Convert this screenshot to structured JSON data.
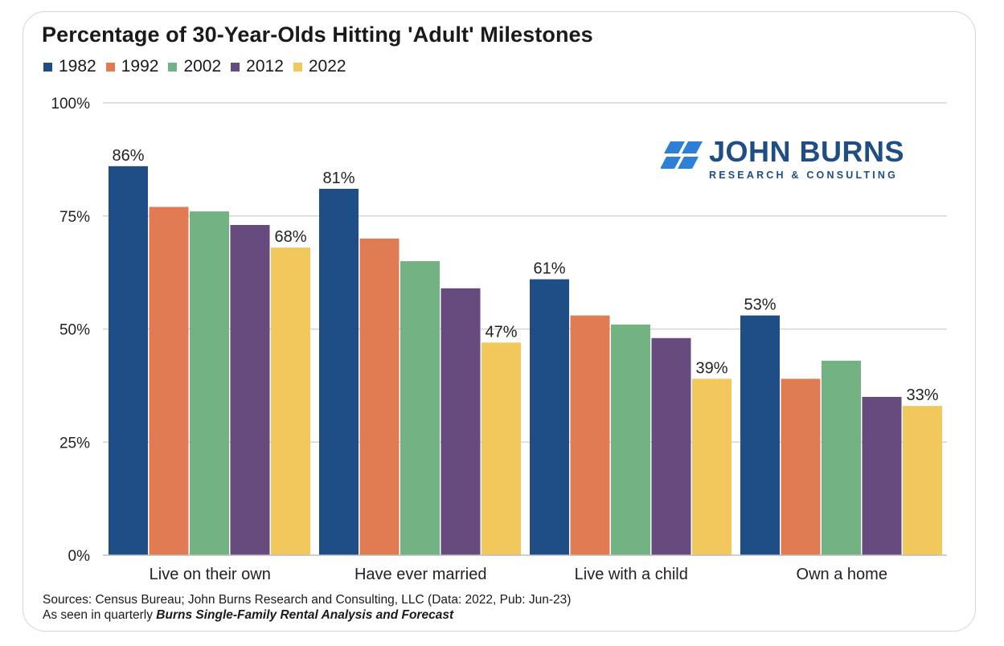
{
  "title": "Percentage of 30-Year-Olds Hitting 'Adult' Milestones",
  "logo": {
    "name": "JOHN BURNS",
    "subtitle": "RESEARCH & CONSULTING",
    "color": "#1f4e86"
  },
  "footer": {
    "sources": "Sources: Census Bureau; John Burns Research and Consulting, LLC (Data: 2022, Pub: Jun-23)",
    "seen_in_prefix": "As seen in quarterly ",
    "seen_in_publication": "Burns Single-Family Rental Analysis and Forecast"
  },
  "chart_data": {
    "type": "bar",
    "title": "Percentage of 30-Year-Olds Hitting 'Adult' Milestones",
    "categories": [
      "Live on their own",
      "Have ever married",
      "Live with a child",
      "Own a home"
    ],
    "series": [
      {
        "name": "1982",
        "color": "#1f4e86",
        "values": [
          86,
          81,
          61,
          53
        ]
      },
      {
        "name": "1992",
        "color": "#e07b54",
        "values": [
          77,
          70,
          53,
          39
        ]
      },
      {
        "name": "2002",
        "color": "#73b383",
        "values": [
          76,
          65,
          51,
          43
        ]
      },
      {
        "name": "2012",
        "color": "#674a7e",
        "values": [
          73,
          59,
          48,
          35
        ]
      },
      {
        "name": "2022",
        "color": "#f2c75c",
        "values": [
          68,
          47,
          39,
          33
        ]
      }
    ],
    "data_labels": [
      {
        "series": "1982",
        "category": "Live on their own",
        "text": "86%"
      },
      {
        "series": "2022",
        "category": "Live on their own",
        "text": "68%"
      },
      {
        "series": "1982",
        "category": "Have ever married",
        "text": "81%"
      },
      {
        "series": "2022",
        "category": "Have ever married",
        "text": "47%"
      },
      {
        "series": "1982",
        "category": "Live with a child",
        "text": "61%"
      },
      {
        "series": "2022",
        "category": "Live with a child",
        "text": "39%"
      },
      {
        "series": "1982",
        "category": "Own a home",
        "text": "53%"
      },
      {
        "series": "2022",
        "category": "Own a home",
        "text": "33%"
      }
    ],
    "y_ticks": [
      "0%",
      "25%",
      "50%",
      "75%",
      "100%"
    ],
    "y_tick_values": [
      0,
      25,
      50,
      75,
      100
    ],
    "ylim": [
      0,
      100
    ],
    "xlabel": "",
    "ylabel": "",
    "grid": true,
    "legend_position": "top-left"
  }
}
